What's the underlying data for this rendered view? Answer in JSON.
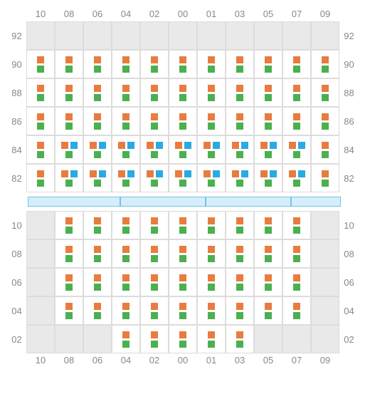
{
  "columns": [
    "10",
    "08",
    "06",
    "04",
    "02",
    "00",
    "01",
    "03",
    "05",
    "07",
    "09"
  ],
  "colors": {
    "orange": "#e87c3f",
    "green": "#4bb050",
    "blue": "#29aae2",
    "emptyCell": "#e9e9e9",
    "activeCell": "#ffffff",
    "border": "#dcdcdc",
    "labelText": "#888888",
    "midFill": "#d6eefb",
    "midBorder": "#71c3e8"
  },
  "markerSize": 10,
  "topRows": [
    {
      "label": "92",
      "cells": [
        0,
        0,
        0,
        0,
        0,
        0,
        0,
        0,
        0,
        0,
        0
      ]
    },
    {
      "label": "90",
      "cells": [
        1,
        1,
        1,
        1,
        1,
        1,
        1,
        1,
        1,
        1,
        1
      ]
    },
    {
      "label": "88",
      "cells": [
        1,
        1,
        1,
        1,
        1,
        1,
        1,
        1,
        1,
        1,
        1
      ]
    },
    {
      "label": "86",
      "cells": [
        1,
        1,
        1,
        1,
        1,
        1,
        1,
        1,
        1,
        1,
        1
      ]
    },
    {
      "label": "84",
      "cells": [
        1,
        2,
        2,
        2,
        2,
        2,
        2,
        2,
        2,
        2,
        1
      ]
    },
    {
      "label": "82",
      "cells": [
        1,
        2,
        2,
        2,
        2,
        2,
        2,
        2,
        2,
        2,
        1
      ]
    }
  ],
  "bottomRows": [
    {
      "label": "10",
      "cells": [
        0,
        1,
        1,
        1,
        1,
        1,
        1,
        1,
        1,
        1,
        0
      ]
    },
    {
      "label": "08",
      "cells": [
        0,
        1,
        1,
        1,
        1,
        1,
        1,
        1,
        1,
        1,
        0
      ]
    },
    {
      "label": "06",
      "cells": [
        0,
        1,
        1,
        1,
        1,
        1,
        1,
        1,
        1,
        1,
        0
      ]
    },
    {
      "label": "04",
      "cells": [
        0,
        1,
        1,
        1,
        1,
        1,
        1,
        1,
        1,
        1,
        0
      ]
    },
    {
      "label": "02",
      "cells": [
        0,
        0,
        0,
        1,
        1,
        1,
        1,
        1,
        0,
        0,
        0
      ]
    }
  ],
  "midSegments": [
    130,
    120,
    120,
    70
  ],
  "cellTypes": {
    "0": {
      "bg": "off",
      "rows": []
    },
    "1": {
      "bg": "on",
      "rows": [
        [
          "orange"
        ],
        [
          "green"
        ]
      ]
    },
    "2": {
      "bg": "on",
      "rows": [
        [
          "orange",
          "blue"
        ],
        [
          "green"
        ]
      ]
    }
  }
}
